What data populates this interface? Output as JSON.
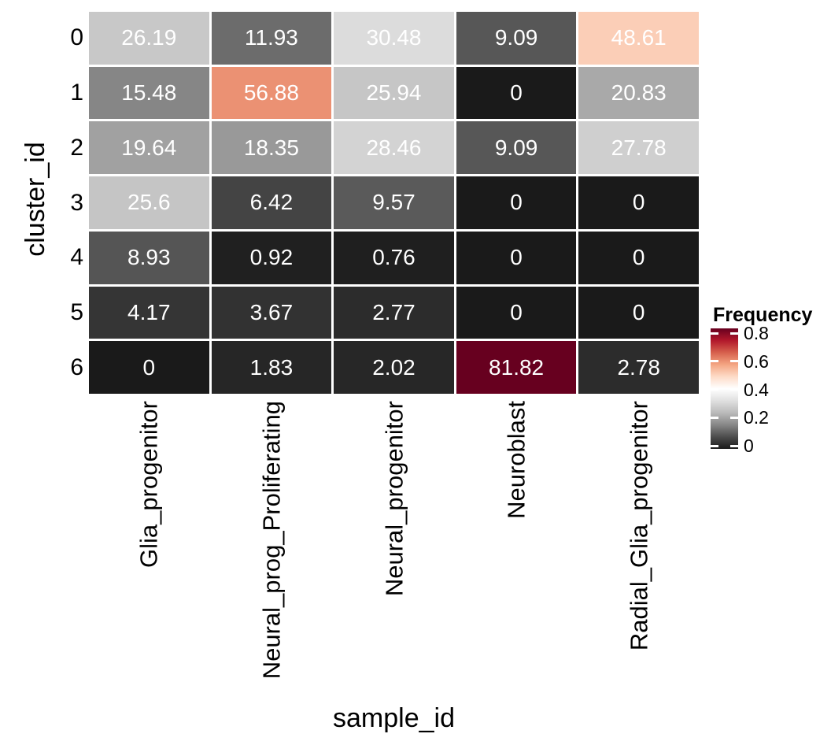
{
  "chart_data": {
    "type": "heatmap",
    "title": "",
    "xlabel": "sample_id",
    "ylabel": "cluster_id",
    "x_categories": [
      "Glia_progenitor",
      "Neural_prog_Proliferating",
      "Neural_progenitor",
      "Neuroblast",
      "Radial_Glia_progenitor"
    ],
    "y_categories": [
      "0",
      "1",
      "2",
      "3",
      "4",
      "5",
      "6"
    ],
    "values_percent": [
      [
        26.19,
        11.93,
        30.48,
        9.09,
        48.61
      ],
      [
        15.48,
        56.88,
        25.94,
        0,
        20.83
      ],
      [
        19.64,
        18.35,
        28.46,
        9.09,
        27.78
      ],
      [
        25.6,
        6.42,
        9.57,
        0,
        0
      ],
      [
        8.93,
        0.92,
        0.76,
        0,
        0
      ],
      [
        4.17,
        3.67,
        2.77,
        0,
        0
      ],
      [
        0,
        1.83,
        2.02,
        81.82,
        2.78
      ]
    ],
    "cell_label_color": "#ffffff",
    "background_color": "#ffffff",
    "palette_low_to_high": [
      "#1a1a1a",
      "#4d4d4d",
      "#878787",
      "#bababa",
      "#e0e0e0",
      "#ffffff",
      "#fddbc7",
      "#f4a582",
      "#d6604d",
      "#b2182b",
      "#67001f"
    ],
    "legend": {
      "title": "Frequency",
      "tick_labels": [
        "0.8",
        "0.6",
        "0.4",
        "0.2",
        "0"
      ],
      "tick_values": [
        0.8,
        0.6,
        0.4,
        0.2,
        0
      ]
    },
    "grid_gap_color": "#ffffff",
    "layout_hints": "x tick labels rotated vertical, legend right of plot, no gridlines, white gaps between cells"
  }
}
